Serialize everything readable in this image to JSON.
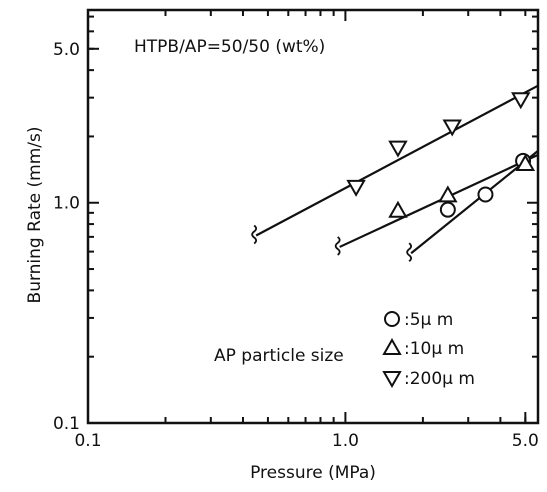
{
  "chart_data": {
    "type": "scatter",
    "scale": "log-log",
    "xlabel": "Pressure  (MPa)",
    "ylabel": "Burning Rate  (mm/s)",
    "xlim": [
      0.1,
      5.6
    ],
    "ylim": [
      0.1,
      7.5
    ],
    "x_ticks": [
      {
        "value": 0.1,
        "label": "0.1"
      },
      {
        "value": 1.0,
        "label": "1.0"
      },
      {
        "value": 5.0,
        "label": "5.0"
      }
    ],
    "y_ticks": [
      {
        "value": 0.1,
        "label": "0.1"
      },
      {
        "value": 1.0,
        "label": "1.0"
      },
      {
        "value": 5.0,
        "label": "5.0"
      }
    ],
    "annotation": "HTPB/AP=50/50 (wt%)",
    "legend_title": "AP particle size",
    "legend_placement": "bottom-right",
    "series": [
      {
        "name": ":5µ m",
        "marker": "circle",
        "points": [
          [
            2.5,
            0.93
          ],
          [
            3.5,
            1.09
          ],
          [
            4.9,
            1.55
          ]
        ],
        "fit": {
          "x": [
            1.8,
            5.6
          ],
          "y": [
            0.59,
            1.72
          ]
        }
      },
      {
        "name": ":10µ m",
        "marker": "triangle-up",
        "points": [
          [
            1.6,
            0.92
          ],
          [
            2.5,
            1.08
          ],
          [
            5.0,
            1.5
          ]
        ],
        "fit": {
          "x": [
            0.95,
            5.6
          ],
          "y": [
            0.63,
            1.65
          ]
        }
      },
      {
        "name": ":200µ m",
        "marker": "triangle-down",
        "points": [
          [
            1.1,
            1.18
          ],
          [
            1.6,
            1.78
          ],
          [
            2.6,
            2.22
          ],
          [
            4.8,
            2.95
          ]
        ],
        "fit": {
          "x": [
            0.45,
            5.6
          ],
          "y": [
            0.71,
            3.4
          ]
        }
      }
    ]
  }
}
